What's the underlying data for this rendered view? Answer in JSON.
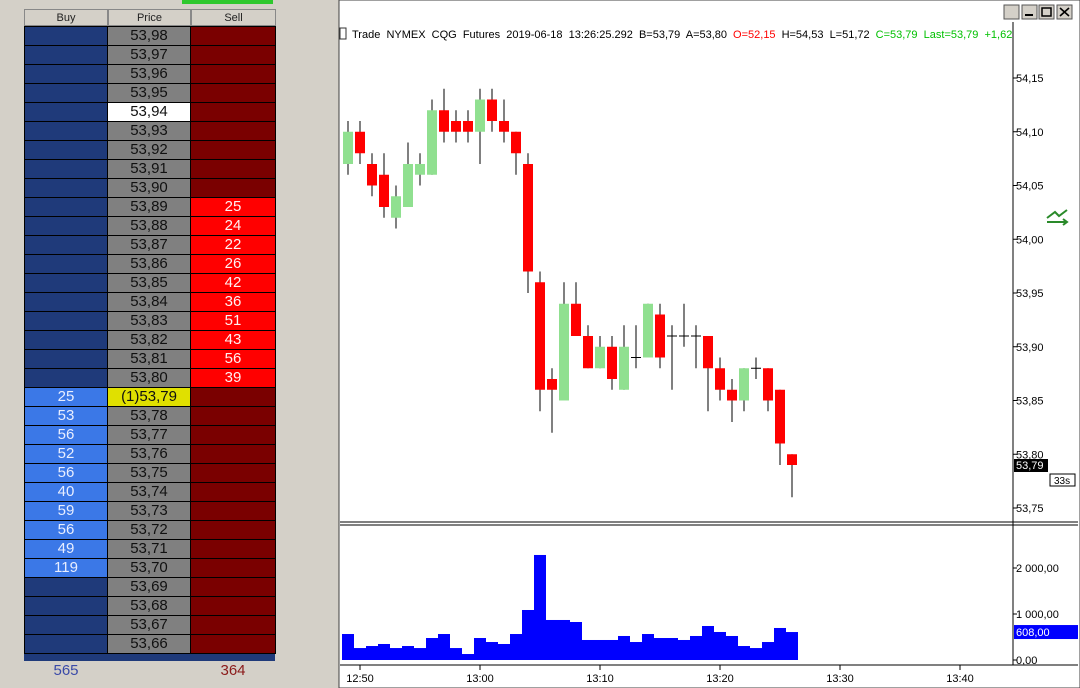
{
  "ladder": {
    "headers": [
      "Buy",
      "Price",
      "Sell"
    ],
    "rows": [
      [
        null,
        "53,98",
        null
      ],
      [
        null,
        "53,97",
        null
      ],
      [
        null,
        "53,96",
        null
      ],
      [
        null,
        "53,95",
        null
      ],
      [
        null,
        "53,94",
        null
      ],
      [
        null,
        "53,93",
        null
      ],
      [
        null,
        "53,92",
        null
      ],
      [
        null,
        "53,91",
        null
      ],
      [
        null,
        "53,90",
        null
      ],
      [
        null,
        "53,89",
        "25"
      ],
      [
        null,
        "53,88",
        "24"
      ],
      [
        null,
        "53,87",
        "22"
      ],
      [
        null,
        "53,86",
        "26"
      ],
      [
        null,
        "53,85",
        "42"
      ],
      [
        null,
        "53,84",
        "36"
      ],
      [
        null,
        "53,83",
        "51"
      ],
      [
        null,
        "53,82",
        "43"
      ],
      [
        null,
        "53,81",
        "56"
      ],
      [
        null,
        "53,80",
        "39"
      ],
      [
        "25",
        "(1)53,79",
        null
      ],
      [
        "53",
        "53,78",
        null
      ],
      [
        "56",
        "53,77",
        null
      ],
      [
        "52",
        "53,76",
        null
      ],
      [
        "56",
        "53,75",
        null
      ],
      [
        "40",
        "53,74",
        null
      ],
      [
        "59",
        "53,73",
        null
      ],
      [
        "56",
        "53,72",
        null
      ],
      [
        "49",
        "53,71",
        null
      ],
      [
        "119",
        "53,70",
        null
      ],
      [
        null,
        "53,69",
        null
      ],
      [
        null,
        "53,68",
        null
      ],
      [
        null,
        "53,67",
        null
      ],
      [
        null,
        "53,66",
        null
      ]
    ],
    "totals": [
      "565",
      "364"
    ]
  },
  "chart": {
    "type": "candlestick",
    "info": [
      {
        "text": "Trade  NYMEX  CQG  Futures  2019-06-18  13:26:25.292  B=53,79  A=53,80",
        "color": "#000000"
      },
      {
        "text": "O=52,15",
        "color": "#ff0000"
      },
      {
        "text": "H=54,53  L=51,72",
        "color": "#000000"
      },
      {
        "text": "C=53,79  Last=53,79  +1,62",
        "color": "#00c000"
      }
    ],
    "up_color": "#90e090",
    "down_color": "#ff0000",
    "x": [
      "12:49",
      "12:50",
      "12:51",
      "12:52",
      "12:53",
      "12:54",
      "12:55",
      "12:56",
      "12:57",
      "12:58",
      "12:59",
      "13:00",
      "13:01",
      "13:02",
      "13:03",
      "13:04",
      "13:05",
      "13:06",
      "13:07",
      "13:08",
      "13:09",
      "13:10",
      "13:11",
      "13:12",
      "13:13",
      "13:14",
      "13:15",
      "13:16",
      "13:17",
      "13:18",
      "13:19",
      "13:20",
      "13:21",
      "13:22",
      "13:23",
      "13:24",
      "13:25",
      "13:26"
    ],
    "open": [
      54.07,
      54.1,
      54.07,
      54.06,
      54.02,
      54.03,
      54.06,
      54.06,
      54.12,
      54.11,
      54.11,
      54.1,
      54.13,
      54.11,
      54.1,
      54.07,
      53.96,
      53.87,
      53.85,
      53.94,
      53.91,
      53.88,
      53.9,
      53.86,
      53.89,
      53.89,
      53.93,
      53.91,
      53.91,
      53.91,
      53.91,
      53.88,
      53.86,
      53.85,
      53.88,
      53.88,
      53.86,
      53.8
    ],
    "high": [
      54.11,
      54.11,
      54.08,
      54.08,
      54.05,
      54.09,
      54.08,
      54.13,
      54.14,
      54.12,
      54.12,
      54.14,
      54.14,
      54.13,
      54.1,
      54.08,
      53.97,
      53.88,
      53.96,
      53.96,
      53.92,
      53.91,
      53.91,
      53.92,
      53.92,
      53.94,
      53.94,
      53.92,
      53.94,
      53.92,
      53.91,
      53.89,
      53.87,
      53.88,
      53.89,
      53.88,
      53.86,
      53.8
    ],
    "low": [
      54.06,
      54.07,
      54.04,
      54.02,
      54.01,
      54.03,
      54.05,
      54.06,
      54.09,
      54.09,
      54.09,
      54.07,
      54.1,
      54.09,
      54.06,
      53.95,
      53.84,
      53.82,
      53.85,
      53.91,
      53.88,
      53.88,
      53.86,
      53.86,
      53.88,
      53.89,
      53.88,
      53.86,
      53.9,
      53.88,
      53.84,
      53.85,
      53.83,
      53.84,
      53.87,
      53.84,
      53.79,
      53.76
    ],
    "close": [
      54.1,
      54.08,
      54.05,
      54.03,
      54.04,
      54.07,
      54.07,
      54.12,
      54.1,
      54.1,
      54.1,
      54.13,
      54.11,
      54.1,
      54.08,
      53.97,
      53.86,
      53.86,
      53.94,
      53.91,
      53.88,
      53.9,
      53.87,
      53.9,
      53.89,
      53.94,
      53.89,
      53.91,
      53.91,
      53.91,
      53.88,
      53.86,
      53.85,
      53.88,
      53.88,
      53.85,
      53.81,
      53.79
    ],
    "xlim": [
      "12:48",
      "13:44"
    ],
    "xticks": [
      "12:50",
      "13:00",
      "13:10",
      "13:20",
      "13:30",
      "13:40"
    ],
    "ylim": [
      53.74,
      54.2
    ],
    "yticks": [
      {
        "value": 54.15,
        "label": "54,15"
      },
      {
        "value": 54.1,
        "label": "54,10"
      },
      {
        "value": 54.05,
        "label": "54,05"
      },
      {
        "value": 54.0,
        "label": "54,00"
      },
      {
        "value": 53.95,
        "label": "53,95"
      },
      {
        "value": 53.9,
        "label": "53,90"
      },
      {
        "value": 53.85,
        "label": "53,85"
      },
      {
        "value": 53.8,
        "label": "53,80"
      },
      {
        "value": 53.75,
        "label": "53,75"
      }
    ],
    "last": {
      "value": 53.79,
      "label": "53,79"
    },
    "countdown": "33s",
    "volume": {
      "color": "#0000ff",
      "values": [
        565,
        260,
        304,
        348,
        260,
        304,
        260,
        478,
        565,
        260,
        130,
        478,
        391,
        348,
        565,
        1087,
        2283,
        870,
        870,
        826,
        435,
        435,
        435,
        522,
        391,
        565,
        478,
        478,
        435,
        522,
        739,
        609,
        522,
        304,
        260,
        391,
        696,
        608
      ],
      "ylim": [
        0,
        2900
      ],
      "yticks": [
        {
          "value": 2000,
          "label": "2 000,00"
        },
        {
          "value": 1000,
          "label": "1 000,00"
        },
        {
          "value": 0,
          "label": "0,00"
        }
      ],
      "last": {
        "value": 608,
        "label": "608,00"
      }
    }
  }
}
